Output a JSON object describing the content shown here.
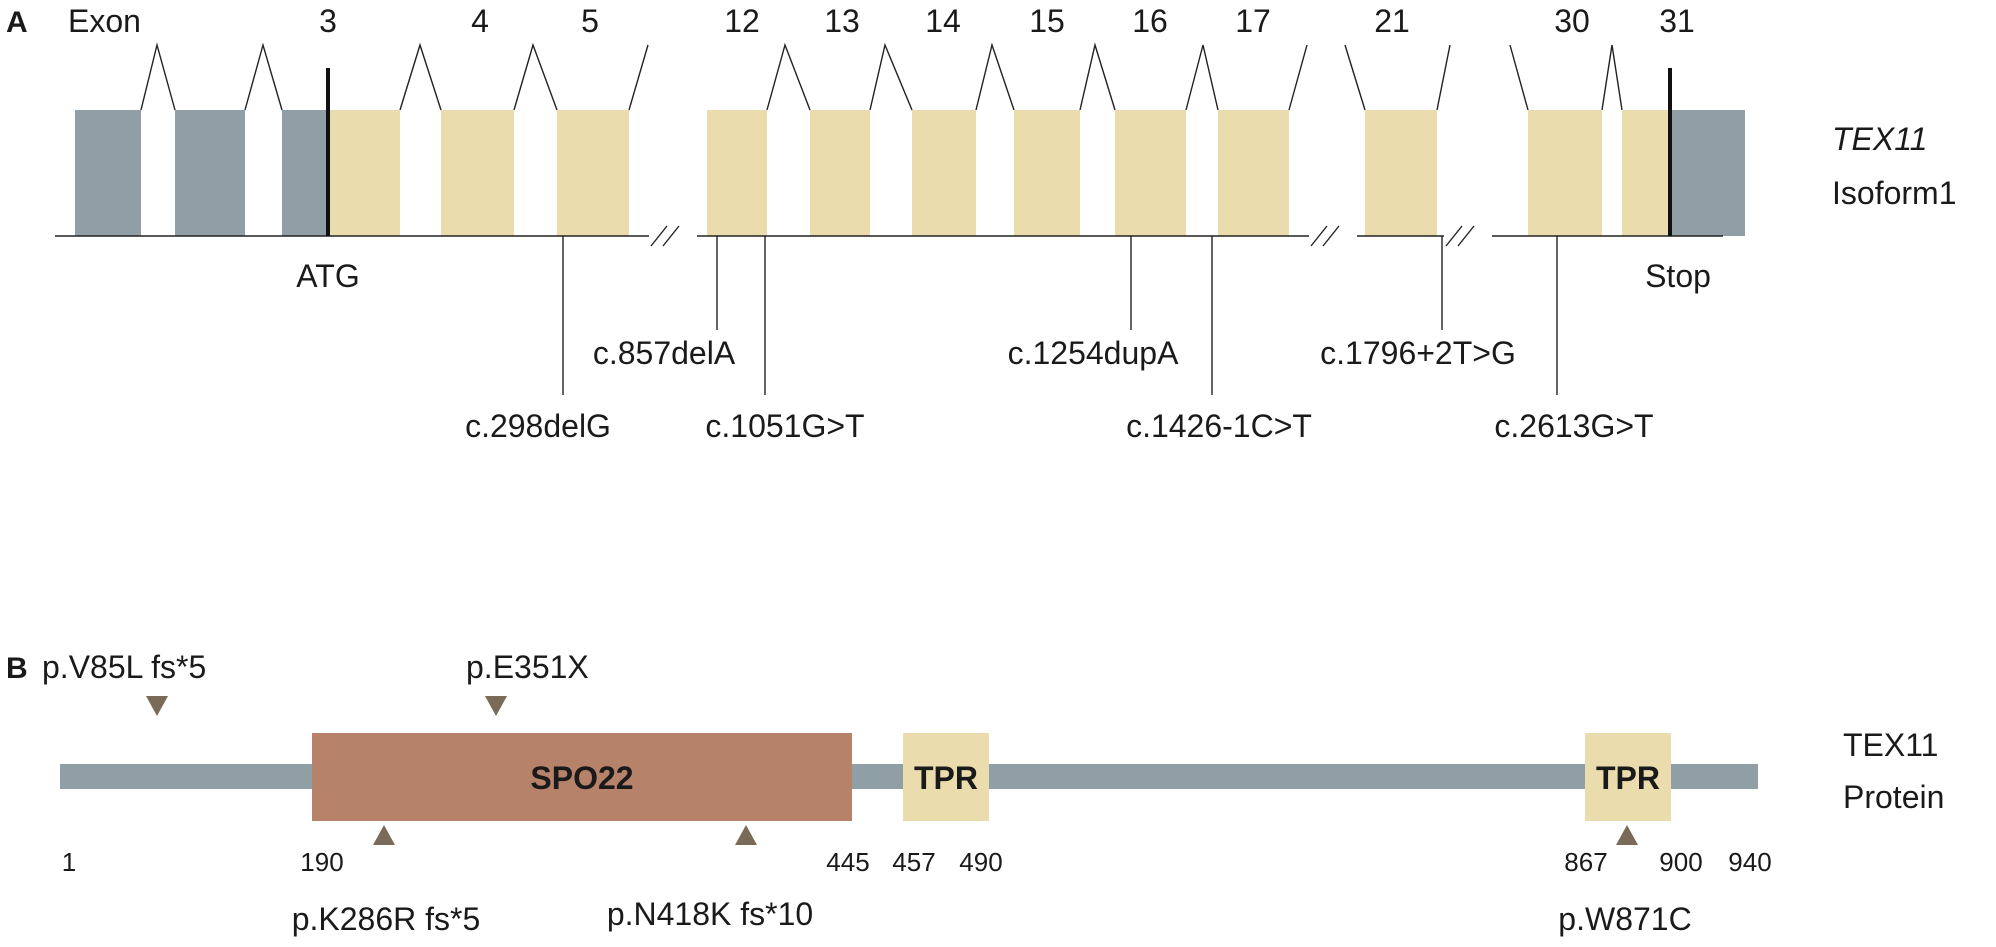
{
  "panel_a": {
    "label": "A",
    "exon_word": "Exon",
    "exon_numbers": [
      "3",
      "4",
      "5",
      "12",
      "13",
      "14",
      "15",
      "16",
      "17",
      "21",
      "30",
      "31"
    ],
    "gene_name": "TEX11",
    "isoform": "Isoform1",
    "start_label": "ATG",
    "stop_label": "Stop",
    "mutations": [
      "c.298delG",
      "c.857delA",
      "c.1051G>T",
      "c.1254dupA",
      "c.1426-1C>T",
      "c.1796+2T>G",
      "c.2613G>T"
    ],
    "colors": {
      "utr": "#909fa5",
      "coding": "#ebdcad",
      "line": "#222222"
    }
  },
  "panel_b": {
    "label": "B",
    "protein_name": "TEX11",
    "protein_word": "Protein",
    "domains": [
      {
        "name": "SPO22",
        "start": 190,
        "end": 445
      },
      {
        "name": "TPR",
        "start": 457,
        "end": 490
      },
      {
        "name": "TPR",
        "start": 867,
        "end": 900
      }
    ],
    "positions": [
      "1",
      "190",
      "445",
      "457",
      "490",
      "867",
      "900",
      "940"
    ],
    "mutations_top": [
      "p.V85L fs*5",
      "p.E351X"
    ],
    "mutations_bottom": [
      "p.K286R fs*5",
      "p.N418K fs*10",
      "p.W871C"
    ],
    "colors": {
      "backbone": "#909fa5",
      "spo22": "#b6826a",
      "tpr": "#ebdcad",
      "marker": "#7a6a58"
    }
  }
}
